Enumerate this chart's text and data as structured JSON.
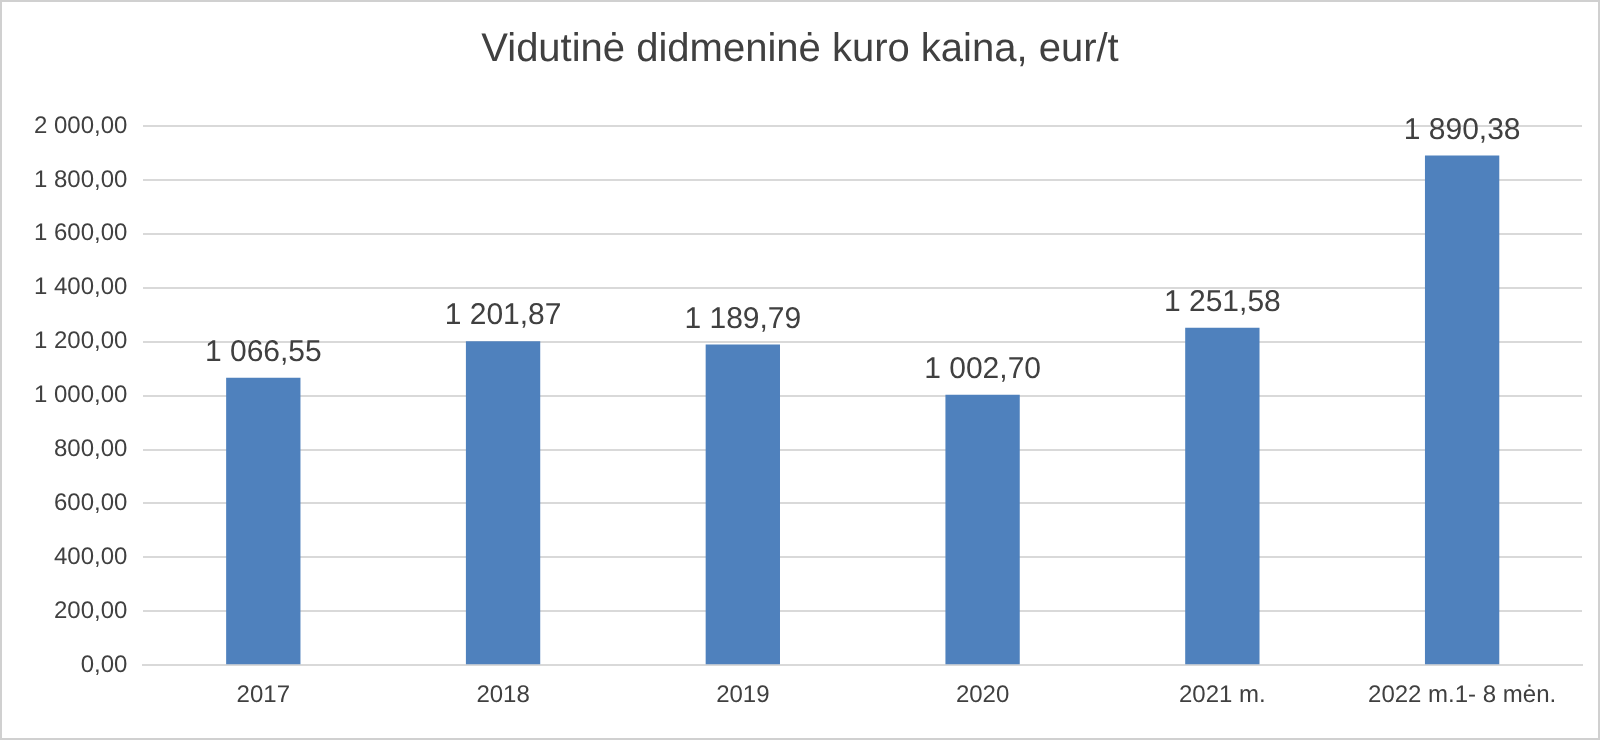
{
  "chart_data": {
    "type": "bar",
    "title": "Vidutinė didmeninė kuro kaina, eur/t",
    "categories": [
      "2017",
      "2018",
      "2019",
      "2020",
      "2021 m.",
      "2022 m.1- 8 mėn."
    ],
    "values": [
      1066.55,
      1201.87,
      1189.79,
      1002.7,
      1251.58,
      1890.38
    ],
    "value_labels": [
      "1 066,55",
      "1 201,87",
      "1 189,79",
      "1 002,70",
      "1 251,58",
      "1 890,38"
    ],
    "color": "#4f81bd",
    "ylim": [
      0,
      2000
    ],
    "yticks": [
      {
        "value": 0,
        "label": "0,00"
      },
      {
        "value": 200,
        "label": "200,00"
      },
      {
        "value": 400,
        "label": "400,00"
      },
      {
        "value": 600,
        "label": "600,00"
      },
      {
        "value": 800,
        "label": "800,00"
      },
      {
        "value": 1000,
        "label": "1 000,00"
      },
      {
        "value": 1200,
        "label": "1 200,00"
      },
      {
        "value": 1400,
        "label": "1 400,00"
      },
      {
        "value": 1600,
        "label": "1 600,00"
      },
      {
        "value": 1800,
        "label": "1 800,00"
      },
      {
        "value": 2000,
        "label": "2 000,00"
      }
    ],
    "grid": "y",
    "legend": false
  }
}
